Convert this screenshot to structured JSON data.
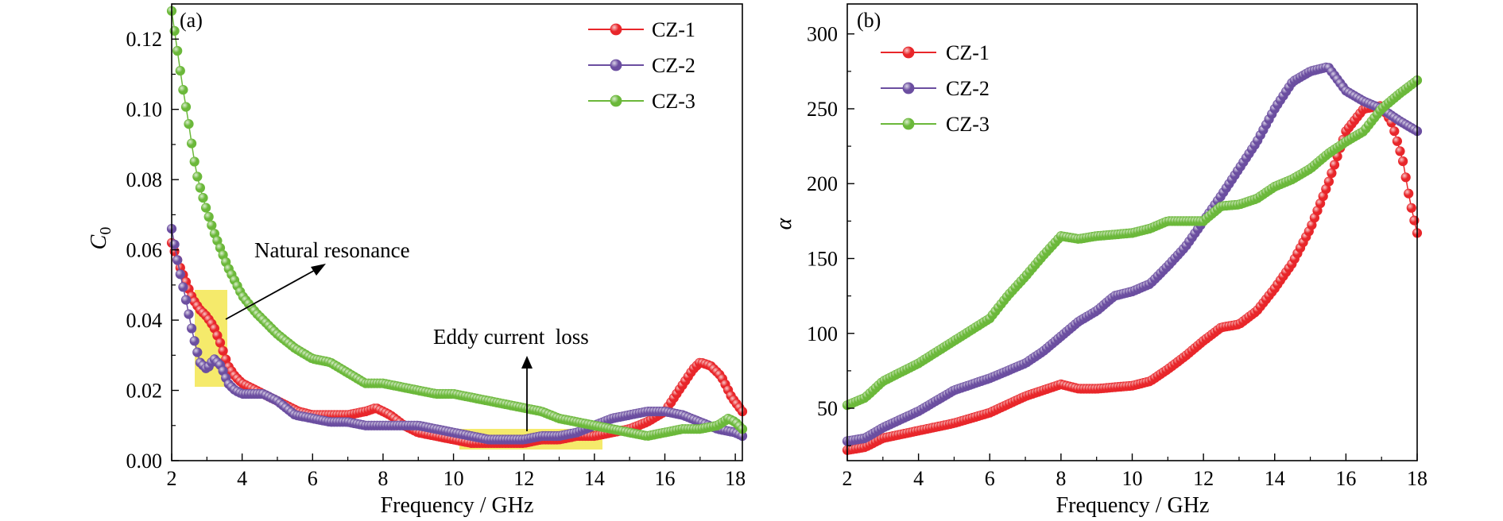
{
  "chart_data": [
    {
      "type": "scatter",
      "panel_label": "(a)",
      "xlabel": "Frequency / GHz",
      "ylabel": "C",
      "ylabel_sub": "0",
      "xlim": [
        2,
        18.2
      ],
      "ylim": [
        0,
        0.13
      ],
      "xticks": [
        "2",
        "4",
        "6",
        "8",
        "10",
        "12",
        "14",
        "16",
        "18"
      ],
      "yticks": [
        "0.00",
        "0.02",
        "0.04",
        "0.06",
        "0.08",
        "0.10",
        "0.12"
      ],
      "legend_position": "top-right",
      "series": [
        {
          "name": "CZ-1",
          "color": "#e8262a",
          "points": [
            [
              2.0,
              0.062
            ],
            [
              2.2,
              0.056
            ],
            [
              2.4,
              0.051
            ],
            [
              2.6,
              0.046
            ],
            [
              2.8,
              0.043
            ],
            [
              3.0,
              0.041
            ],
            [
              3.2,
              0.038
            ],
            [
              3.4,
              0.033
            ],
            [
              3.6,
              0.027
            ],
            [
              3.8,
              0.024
            ],
            [
              4.0,
              0.022
            ],
            [
              4.4,
              0.02
            ],
            [
              5.0,
              0.017
            ],
            [
              5.6,
              0.014
            ],
            [
              6.0,
              0.013
            ],
            [
              6.5,
              0.013
            ],
            [
              7.0,
              0.013
            ],
            [
              7.5,
              0.014
            ],
            [
              7.8,
              0.015
            ],
            [
              8.2,
              0.013
            ],
            [
              8.6,
              0.01
            ],
            [
              9.0,
              0.008
            ],
            [
              9.5,
              0.007
            ],
            [
              10.0,
              0.006
            ],
            [
              10.5,
              0.005
            ],
            [
              11.0,
              0.005
            ],
            [
              11.5,
              0.005
            ],
            [
              12.0,
              0.005
            ],
            [
              12.5,
              0.006
            ],
            [
              13.0,
              0.006
            ],
            [
              13.5,
              0.007
            ],
            [
              14.0,
              0.007
            ],
            [
              14.5,
              0.008
            ],
            [
              15.0,
              0.009
            ],
            [
              15.5,
              0.011
            ],
            [
              16.0,
              0.014
            ],
            [
              16.4,
              0.02
            ],
            [
              16.8,
              0.026
            ],
            [
              17.0,
              0.028
            ],
            [
              17.3,
              0.027
            ],
            [
              17.6,
              0.024
            ],
            [
              17.9,
              0.018
            ],
            [
              18.2,
              0.014
            ]
          ]
        },
        {
          "name": "CZ-2",
          "color": "#6b4ea0",
          "points": [
            [
              2.0,
              0.066
            ],
            [
              2.2,
              0.055
            ],
            [
              2.4,
              0.046
            ],
            [
              2.6,
              0.036
            ],
            [
              2.8,
              0.028
            ],
            [
              3.0,
              0.026
            ],
            [
              3.2,
              0.029
            ],
            [
              3.4,
              0.027
            ],
            [
              3.6,
              0.022
            ],
            [
              3.8,
              0.02
            ],
            [
              4.0,
              0.019
            ],
            [
              4.3,
              0.019
            ],
            [
              4.6,
              0.019
            ],
            [
              5.0,
              0.017
            ],
            [
              5.5,
              0.013
            ],
            [
              6.0,
              0.012
            ],
            [
              6.5,
              0.011
            ],
            [
              7.0,
              0.011
            ],
            [
              7.5,
              0.01
            ],
            [
              8.0,
              0.01
            ],
            [
              8.5,
              0.01
            ],
            [
              9.0,
              0.01
            ],
            [
              9.5,
              0.009
            ],
            [
              10.0,
              0.008
            ],
            [
              10.5,
              0.007
            ],
            [
              11.0,
              0.006
            ],
            [
              11.5,
              0.006
            ],
            [
              12.0,
              0.006
            ],
            [
              12.5,
              0.007
            ],
            [
              13.0,
              0.007
            ],
            [
              13.5,
              0.008
            ],
            [
              14.0,
              0.01
            ],
            [
              14.5,
              0.012
            ],
            [
              15.0,
              0.013
            ],
            [
              15.5,
              0.014
            ],
            [
              16.0,
              0.014
            ],
            [
              16.5,
              0.013
            ],
            [
              17.0,
              0.011
            ],
            [
              17.5,
              0.009
            ],
            [
              18.0,
              0.008
            ],
            [
              18.2,
              0.007
            ]
          ]
        },
        {
          "name": "CZ-3",
          "color": "#6bb83a",
          "points": [
            [
              2.0,
              0.128
            ],
            [
              2.1,
              0.121
            ],
            [
              2.2,
              0.114
            ],
            [
              2.3,
              0.107
            ],
            [
              2.4,
              0.101
            ],
            [
              2.5,
              0.095
            ],
            [
              2.6,
              0.088
            ],
            [
              2.7,
              0.082
            ],
            [
              2.8,
              0.078
            ],
            [
              3.0,
              0.071
            ],
            [
              3.2,
              0.065
            ],
            [
              3.4,
              0.06
            ],
            [
              3.6,
              0.055
            ],
            [
              3.8,
              0.051
            ],
            [
              4.0,
              0.047
            ],
            [
              4.4,
              0.042
            ],
            [
              5.0,
              0.036
            ],
            [
              5.5,
              0.032
            ],
            [
              6.0,
              0.029
            ],
            [
              6.5,
              0.028
            ],
            [
              7.0,
              0.025
            ],
            [
              7.5,
              0.022
            ],
            [
              8.0,
              0.022
            ],
            [
              8.5,
              0.021
            ],
            [
              9.0,
              0.02
            ],
            [
              9.5,
              0.019
            ],
            [
              10.0,
              0.019
            ],
            [
              10.5,
              0.018
            ],
            [
              11.0,
              0.017
            ],
            [
              11.5,
              0.016
            ],
            [
              12.0,
              0.015
            ],
            [
              12.5,
              0.014
            ],
            [
              13.0,
              0.012
            ],
            [
              13.5,
              0.011
            ],
            [
              14.0,
              0.01
            ],
            [
              14.5,
              0.009
            ],
            [
              15.0,
              0.008
            ],
            [
              15.5,
              0.007
            ],
            [
              16.0,
              0.008
            ],
            [
              16.5,
              0.009
            ],
            [
              17.0,
              0.009
            ],
            [
              17.5,
              0.01
            ],
            [
              17.8,
              0.012
            ],
            [
              18.0,
              0.011
            ],
            [
              18.2,
              0.009
            ]
          ]
        }
      ],
      "annotations": [
        {
          "text": "Natural resonance"
        },
        {
          "text": "Eddy current  loss"
        }
      ]
    },
    {
      "type": "scatter",
      "panel_label": "(b)",
      "xlabel": "Frequency / GHz",
      "ylabel": "α",
      "xlim": [
        2,
        18
      ],
      "ylim": [
        15,
        320
      ],
      "xticks": [
        "2",
        "4",
        "6",
        "8",
        "10",
        "12",
        "14",
        "16",
        "18"
      ],
      "yticks": [
        "50",
        "100",
        "150",
        "200",
        "250",
        "300"
      ],
      "legend_position": "top-left",
      "series": [
        {
          "name": "CZ-1",
          "color": "#e8262a",
          "points": [
            [
              2.0,
              22
            ],
            [
              2.5,
              24
            ],
            [
              3.0,
              30
            ],
            [
              4.0,
              35
            ],
            [
              5.0,
              40
            ],
            [
              6.0,
              47
            ],
            [
              7.0,
              58
            ],
            [
              7.5,
              62
            ],
            [
              8.0,
              66
            ],
            [
              8.5,
              63
            ],
            [
              9.0,
              63
            ],
            [
              9.5,
              64
            ],
            [
              10.0,
              65
            ],
            [
              10.5,
              68
            ],
            [
              11.0,
              76
            ],
            [
              11.5,
              85
            ],
            [
              12.0,
              95
            ],
            [
              12.5,
              104
            ],
            [
              13.0,
              106
            ],
            [
              13.5,
              115
            ],
            [
              14.0,
              130
            ],
            [
              14.5,
              147
            ],
            [
              15.0,
              170
            ],
            [
              15.5,
              200
            ],
            [
              16.0,
              235
            ],
            [
              16.5,
              250
            ],
            [
              17.0,
              252
            ],
            [
              17.3,
              240
            ],
            [
              17.6,
              215
            ],
            [
              17.8,
              188
            ],
            [
              18.0,
              167
            ]
          ]
        },
        {
          "name": "CZ-2",
          "color": "#6b4ea0",
          "points": [
            [
              2.0,
              28
            ],
            [
              2.5,
              30
            ],
            [
              3.0,
              37
            ],
            [
              4.0,
              48
            ],
            [
              5.0,
              62
            ],
            [
              6.0,
              70
            ],
            [
              7.0,
              80
            ],
            [
              7.5,
              88
            ],
            [
              8.0,
              98
            ],
            [
              8.5,
              108
            ],
            [
              9.0,
              115
            ],
            [
              9.5,
              125
            ],
            [
              10.0,
              128
            ],
            [
              10.5,
              133
            ],
            [
              11.0,
              145
            ],
            [
              11.5,
              158
            ],
            [
              12.0,
              175
            ],
            [
              12.5,
              192
            ],
            [
              13.0,
              210
            ],
            [
              13.5,
              228
            ],
            [
              14.0,
              250
            ],
            [
              14.5,
              268
            ],
            [
              15.0,
              275
            ],
            [
              15.5,
              278
            ],
            [
              16.0,
              262
            ],
            [
              16.5,
              255
            ],
            [
              17.0,
              250
            ],
            [
              17.5,
              242
            ],
            [
              18.0,
              235
            ]
          ]
        },
        {
          "name": "CZ-3",
          "color": "#6bb83a",
          "points": [
            [
              2.0,
              52
            ],
            [
              2.5,
              57
            ],
            [
              3.0,
              68
            ],
            [
              4.0,
              80
            ],
            [
              5.0,
              95
            ],
            [
              6.0,
              110
            ],
            [
              6.5,
              125
            ],
            [
              7.0,
              138
            ],
            [
              7.5,
              152
            ],
            [
              8.0,
              165
            ],
            [
              8.5,
              163
            ],
            [
              9.0,
              165
            ],
            [
              9.5,
              166
            ],
            [
              10.0,
              167
            ],
            [
              10.5,
              170
            ],
            [
              11.0,
              175
            ],
            [
              11.5,
              175
            ],
            [
              12.0,
              175
            ],
            [
              12.5,
              185
            ],
            [
              13.0,
              186
            ],
            [
              13.5,
              190
            ],
            [
              14.0,
              198
            ],
            [
              14.5,
              203
            ],
            [
              15.0,
              210
            ],
            [
              15.5,
              220
            ],
            [
              16.0,
              228
            ],
            [
              16.5,
              235
            ],
            [
              17.0,
              250
            ],
            [
              17.5,
              260
            ],
            [
              18.0,
              269
            ]
          ]
        }
      ]
    }
  ]
}
